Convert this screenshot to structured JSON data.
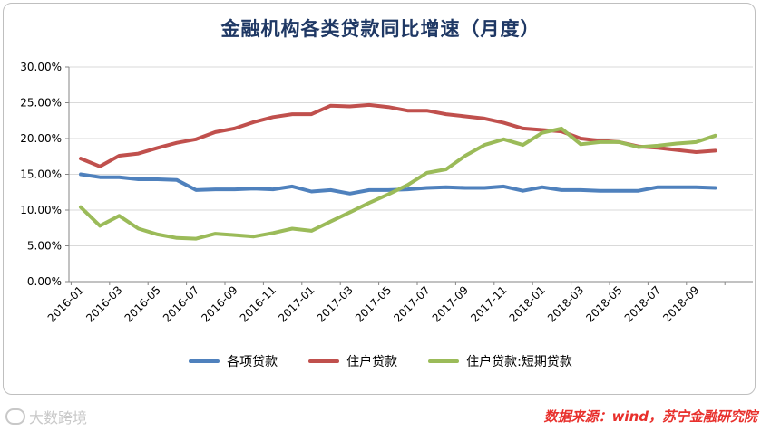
{
  "chart_data": {
    "type": "line",
    "title": "金融机构各类贷款同比增速（月度）",
    "xlabel": "",
    "ylabel": "",
    "ylim": [
      0,
      0.3
    ],
    "yticks": [
      "0.00%",
      "5.00%",
      "10.00%",
      "15.00%",
      "20.00%",
      "25.00%",
      "30.00%"
    ],
    "grid": "horizontal",
    "legend_position": "bottom",
    "x": [
      "2016-01",
      "2016-02",
      "2016-03",
      "2016-04",
      "2016-05",
      "2016-06",
      "2016-07",
      "2016-08",
      "2016-09",
      "2016-10",
      "2016-11",
      "2016-12",
      "2017-01",
      "2017-02",
      "2017-03",
      "2017-04",
      "2017-05",
      "2017-06",
      "2017-07",
      "2017-08",
      "2017-09",
      "2017-10",
      "2017-11",
      "2017-12",
      "2018-01",
      "2018-02",
      "2018-03",
      "2018-04",
      "2018-05",
      "2018-06",
      "2018-07",
      "2018-08",
      "2018-09",
      "2018-10"
    ],
    "xtick_labels": [
      "2016-01",
      "2016-03",
      "2016-05",
      "2016-07",
      "2016-09",
      "2016-11",
      "2017-01",
      "2017-03",
      "2017-05",
      "2017-07",
      "2017-09",
      "2017-11",
      "2018-01",
      "2018-03",
      "2018-05",
      "2018-07",
      "2018-09"
    ],
    "series": [
      {
        "name": "各项贷款",
        "color": "#4f81bd",
        "values": [
          0.15,
          0.146,
          0.146,
          0.143,
          0.143,
          0.142,
          0.128,
          0.129,
          0.129,
          0.13,
          0.129,
          0.133,
          0.126,
          0.128,
          0.123,
          0.128,
          0.128,
          0.129,
          0.131,
          0.132,
          0.131,
          0.131,
          0.133,
          0.127,
          0.132,
          0.128,
          0.128,
          0.127,
          0.127,
          0.127,
          0.132,
          0.132,
          0.132,
          0.131
        ]
      },
      {
        "name": "住户贷款",
        "color": "#c0504d",
        "values": [
          0.172,
          0.161,
          0.176,
          0.179,
          0.187,
          0.194,
          0.199,
          0.209,
          0.214,
          0.223,
          0.23,
          0.234,
          0.234,
          0.246,
          0.245,
          0.247,
          0.244,
          0.239,
          0.239,
          0.234,
          0.231,
          0.228,
          0.222,
          0.214,
          0.212,
          0.21,
          0.2,
          0.197,
          0.195,
          0.189,
          0.187,
          0.184,
          0.181,
          0.183
        ]
      },
      {
        "name": "住户贷款:短期贷款",
        "color": "#9bbb59",
        "values": [
          0.104,
          0.078,
          0.092,
          0.074,
          0.066,
          0.061,
          0.06,
          0.067,
          0.065,
          0.063,
          0.068,
          0.074,
          0.071,
          0.084,
          0.097,
          0.11,
          0.122,
          0.135,
          0.152,
          0.157,
          0.176,
          0.191,
          0.199,
          0.191,
          0.208,
          0.214,
          0.192,
          0.195,
          0.195,
          0.188,
          0.19,
          0.193,
          0.195,
          0.204
        ]
      }
    ]
  },
  "footer": {
    "watermark": "大数跨境",
    "source": "数据来源：wind，苏宁金融研究院"
  }
}
